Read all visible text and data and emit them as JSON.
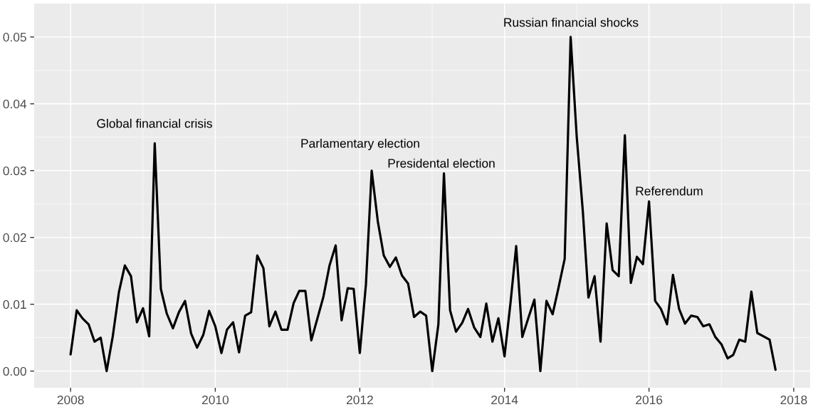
{
  "chart_data": {
    "type": "line",
    "x": [
      "2008-01",
      "2008-02",
      "2008-03",
      "2008-04",
      "2008-05",
      "2008-06",
      "2008-07",
      "2008-08",
      "2008-09",
      "2008-10",
      "2008-11",
      "2008-12",
      "2009-01",
      "2009-02",
      "2009-03",
      "2009-04",
      "2009-05",
      "2009-06",
      "2009-07",
      "2009-08",
      "2009-09",
      "2009-10",
      "2009-11",
      "2009-12",
      "2010-01",
      "2010-02",
      "2010-03",
      "2010-04",
      "2010-05",
      "2010-06",
      "2010-07",
      "2010-08",
      "2010-09",
      "2010-10",
      "2010-11",
      "2010-12",
      "2011-01",
      "2011-02",
      "2011-03",
      "2011-04",
      "2011-05",
      "2011-06",
      "2011-07",
      "2011-08",
      "2011-09",
      "2011-10",
      "2011-11",
      "2011-12",
      "2012-01",
      "2012-02",
      "2012-03",
      "2012-04",
      "2012-05",
      "2012-06",
      "2012-07",
      "2012-08",
      "2012-09",
      "2012-10",
      "2012-11",
      "2012-12",
      "2013-01",
      "2013-02",
      "2013-03",
      "2013-04",
      "2013-05",
      "2013-06",
      "2013-07",
      "2013-08",
      "2013-09",
      "2013-10",
      "2013-11",
      "2013-12",
      "2014-01",
      "2014-02",
      "2014-03",
      "2014-04",
      "2014-05",
      "2014-06",
      "2014-07",
      "2014-08",
      "2014-09",
      "2014-10",
      "2014-11",
      "2014-12",
      "2015-01",
      "2015-02",
      "2015-03",
      "2015-04",
      "2015-05",
      "2015-06",
      "2015-07",
      "2015-08",
      "2015-09",
      "2015-10",
      "2015-11",
      "2015-12",
      "2016-01",
      "2016-02",
      "2016-03",
      "2016-04",
      "2016-05",
      "2016-06",
      "2016-07",
      "2016-08",
      "2016-09",
      "2016-10",
      "2016-11",
      "2016-12",
      "2017-01",
      "2017-02",
      "2017-03",
      "2017-04",
      "2017-05",
      "2017-06",
      "2017-07",
      "2017-08",
      "2017-09",
      "2017-10"
    ],
    "series": [
      {
        "color": "#000000",
        "values": [
          0.0025,
          0.0091,
          0.0079,
          0.007,
          0.0044,
          0.005,
          0.0,
          0.0052,
          0.0118,
          0.0158,
          0.0142,
          0.0073,
          0.0094,
          0.0052,
          0.0341,
          0.0123,
          0.0086,
          0.0064,
          0.0088,
          0.0105,
          0.0056,
          0.0035,
          0.0054,
          0.009,
          0.0067,
          0.0027,
          0.0062,
          0.0073,
          0.0028,
          0.0083,
          0.0088,
          0.0173,
          0.0154,
          0.0067,
          0.0089,
          0.0062,
          0.0062,
          0.0102,
          0.012,
          0.012,
          0.0046,
          0.0079,
          0.0111,
          0.0158,
          0.0188,
          0.0076,
          0.0124,
          0.0123,
          0.0027,
          0.013,
          0.03,
          0.0224,
          0.0173,
          0.0156,
          0.017,
          0.0143,
          0.0131,
          0.0081,
          0.0089,
          0.0083,
          0.0,
          0.007,
          0.0296,
          0.0091,
          0.0059,
          0.0072,
          0.0093,
          0.0065,
          0.0051,
          0.0101,
          0.0044,
          0.0079,
          0.0022,
          0.0104,
          0.0187,
          0.0051,
          0.0079,
          0.0107,
          0.0,
          0.0105,
          0.0085,
          0.0125,
          0.0168,
          0.05,
          0.035,
          0.0238,
          0.011,
          0.0142,
          0.0044,
          0.0221,
          0.0151,
          0.0142,
          0.0353,
          0.0132,
          0.0171,
          0.016,
          0.0254,
          0.0105,
          0.0093,
          0.007,
          0.0144,
          0.0093,
          0.0071,
          0.0083,
          0.0081,
          0.0067,
          0.007,
          0.0051,
          0.004,
          0.0019,
          0.0024,
          0.0047,
          0.0044,
          0.0119,
          0.0057,
          0.0052,
          0.0047,
          0.0002
        ]
      }
    ],
    "xlim": [
      "2007-07-01",
      "2018-03-25"
    ],
    "xticks": [
      "2008",
      "2010",
      "2012",
      "2014",
      "2016",
      "2018"
    ],
    "ylim": [
      -0.0025,
      0.055
    ],
    "yticks": [
      {
        "value": 0,
        "label": "0.00"
      },
      {
        "value": 0.01,
        "label": "0.01"
      },
      {
        "value": 0.02,
        "label": "0.02"
      },
      {
        "value": 0.03,
        "label": "0.03"
      },
      {
        "value": 0.04,
        "label": "0.04"
      },
      {
        "value": 0.05,
        "label": "0.05"
      }
    ],
    "grid": true,
    "line_style": "solid",
    "annotations": [
      "Global financial crisis",
      "Parlamentary election",
      "Presidental election",
      "Russian financial shocks",
      "Referendum"
    ]
  }
}
